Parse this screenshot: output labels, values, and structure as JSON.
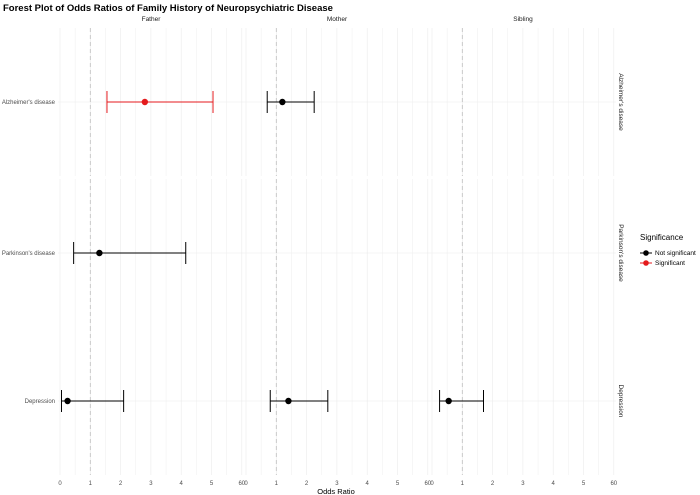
{
  "chart_data": {
    "type": "scatter",
    "title": "Forest Plot of Odds Ratios of Family History of Neuropsychiatric Disease",
    "xlabel": "Odds Ratio",
    "ylabel": "",
    "panels": [
      "Father",
      "Mother",
      "Sibling"
    ],
    "rows": [
      "Alzheimer's disease",
      "Parkinson's disease",
      "Depression"
    ],
    "row_labels": [
      "Alzheimer's disease",
      "Parkinson's disease",
      "Depression"
    ],
    "x_ticks": [
      "0",
      "1",
      "2",
      "3",
      "4",
      "5",
      "60"
    ],
    "reference_line": 1,
    "legend": {
      "title": "Significance",
      "entries": [
        {
          "name": "Not significant",
          "color": "#000000"
        },
        {
          "name": "Significant",
          "color": "#e41a1c"
        }
      ],
      "placement": "right"
    },
    "points": [
      {
        "panel": "Father",
        "row": "Alzheimer's disease",
        "estimate": 2.8,
        "lower": 1.55,
        "upper": 5.05,
        "significance": "Significant"
      },
      {
        "panel": "Mother",
        "row": "Alzheimer's disease",
        "estimate": 1.2,
        "lower": 0.7,
        "upper": 2.25,
        "significance": "Not significant"
      },
      {
        "panel": "Father",
        "row": "Parkinson's disease",
        "estimate": 1.3,
        "lower": 0.45,
        "upper": 4.15,
        "significance": "Not significant"
      },
      {
        "panel": "Father",
        "row": "Depression",
        "estimate": 0.25,
        "lower": 0.05,
        "upper": 2.1,
        "significance": "Not significant"
      },
      {
        "panel": "Mother",
        "row": "Depression",
        "estimate": 1.4,
        "lower": 0.8,
        "upper": 2.7,
        "significance": "Not significant"
      },
      {
        "panel": "Sibling",
        "row": "Depression",
        "estimate": 0.55,
        "lower": 0.25,
        "upper": 1.7,
        "significance": "Not significant"
      }
    ],
    "colors": {
      "significant": "#e41a1c",
      "not_significant": "#000000",
      "reference": "#bdbdbd",
      "grid": "#ebebeb"
    },
    "grid": true
  }
}
